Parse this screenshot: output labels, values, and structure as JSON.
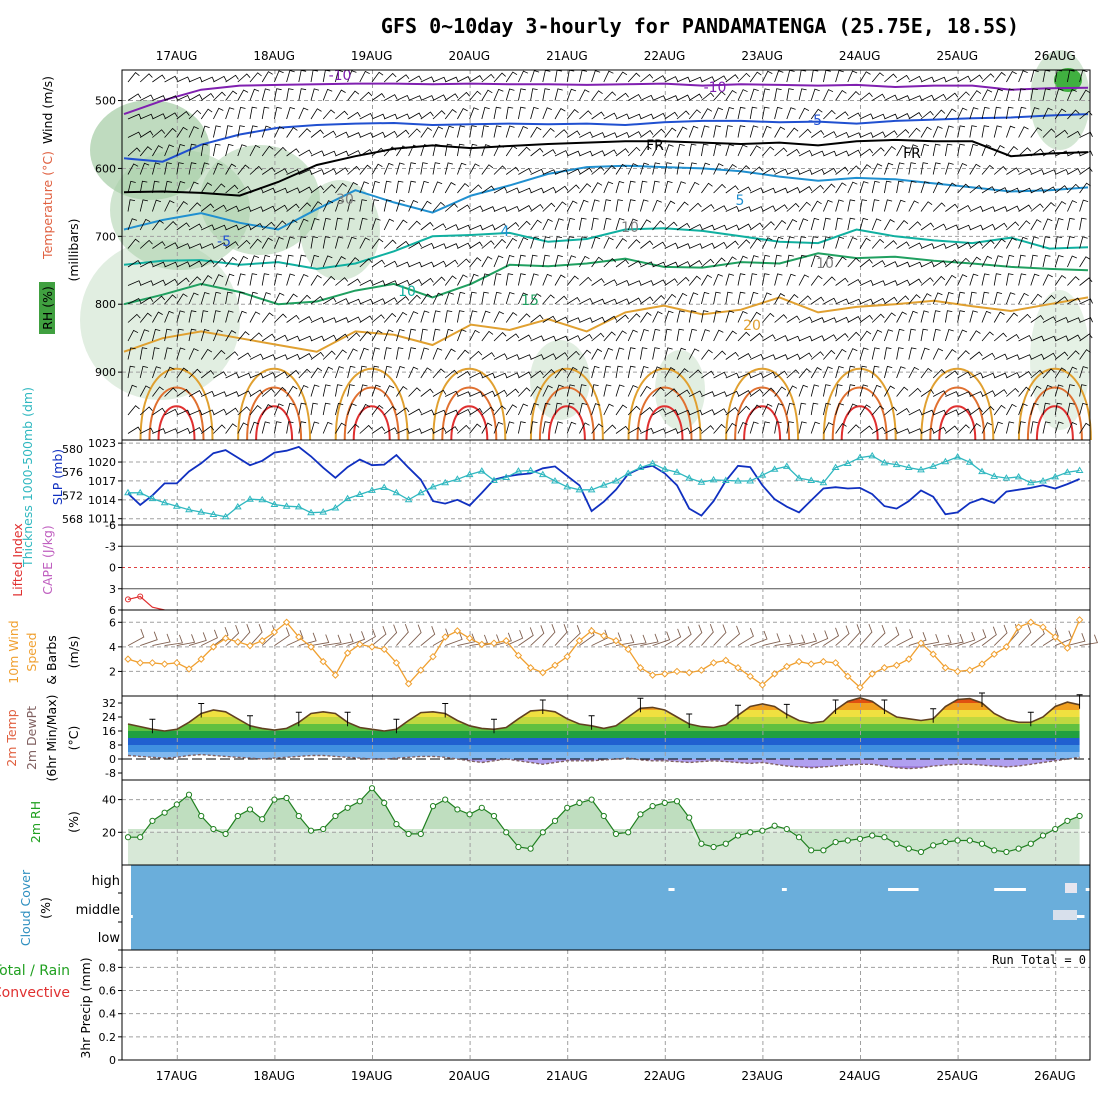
{
  "title": "GFS 0~10day 3-hourly for PANDAMATENGA (25.75E, 18.5S)",
  "dates": [
    "17AUG",
    "18AUG",
    "19AUG",
    "20AUG",
    "21AUG",
    "22AUG",
    "23AUG",
    "24AUG",
    "25AUG",
    "26AUG"
  ],
  "colors": {
    "grid": "#a0a0a0",
    "sky": "#6aaedb",
    "cloud": "#ffffff",
    "slp": "#1030c0",
    "thick": "#30b8c0",
    "wind": "#f0a030",
    "barb": "#806050",
    "rh": "#208020",
    "rh_fill": "#a9cfa9",
    "dew": "#806060"
  },
  "chart_data": [
    {
      "type": "contour",
      "name": "upper-air",
      "y_label_parts": [
        "Wind (m/s)",
        "Temperature (°C)",
        "(millibars)",
        "RH (%)"
      ],
      "yticks": [
        500,
        600,
        700,
        800,
        900
      ],
      "ylim": [
        1000,
        455
      ],
      "isotherm_labels": [
        "-10",
        "-10",
        "-5",
        "FR",
        "FR",
        "5",
        "-5",
        "4",
        "10",
        "15",
        "20",
        "30",
        "10",
        "10"
      ],
      "contours": [
        {
          "level": "-10",
          "color": "#8020b0",
          "p": [
            520,
            500,
            484,
            478,
            477,
            476,
            475,
            475,
            476,
            475,
            476,
            476,
            477,
            476,
            475,
            478,
            476,
            477,
            478,
            477,
            480,
            478,
            478,
            484,
            482,
            481
          ]
        },
        {
          "level": "-5",
          "color": "#2050d0",
          "p": [
            585,
            590,
            565,
            550,
            540,
            536,
            534,
            533,
            536,
            535,
            534,
            535,
            534,
            536,
            532,
            530,
            530,
            532,
            531,
            534,
            530,
            528,
            526,
            525,
            522,
            520
          ]
        },
        {
          "level": "FR",
          "color": "#000000",
          "p": [
            635,
            634,
            636,
            640,
            620,
            595,
            582,
            571,
            566,
            570,
            567,
            564,
            562,
            560,
            560,
            562,
            564,
            562,
            566,
            560,
            558,
            560,
            560,
            582,
            578,
            576
          ]
        },
        {
          "level": "5",
          "color": "#2090d0",
          "p": [
            690,
            676,
            666,
            680,
            690,
            660,
            632,
            650,
            665,
            640,
            625,
            608,
            598,
            596,
            598,
            600,
            604,
            612,
            618,
            614,
            616,
            622,
            628,
            634,
            632,
            628
          ]
        },
        {
          "level": "10",
          "color": "#10b0a0",
          "p": [
            742,
            736,
            735,
            742,
            738,
            748,
            740,
            722,
            700,
            698,
            695,
            708,
            704,
            690,
            688,
            692,
            700,
            708,
            710,
            690,
            700,
            706,
            710,
            702,
            718,
            716
          ]
        },
        {
          "level": "15",
          "color": "#20a060",
          "p": [
            800,
            786,
            770,
            782,
            800,
            796,
            780,
            770,
            790,
            770,
            742,
            744,
            740,
            733,
            745,
            746,
            738,
            740,
            725,
            732,
            730,
            736,
            740,
            745,
            748,
            750
          ]
        },
        {
          "level": "20",
          "color": "#e0a030",
          "p": [
            870,
            850,
            840,
            850,
            860,
            870,
            840,
            845,
            860,
            830,
            838,
            822,
            840,
            812,
            802,
            815,
            808,
            790,
            812,
            804,
            800,
            795,
            803,
            810,
            800,
            790
          ]
        }
      ]
    },
    {
      "type": "line",
      "name": "slp-thickness",
      "y_label_parts": [
        "SLP (mb)",
        "Thickness 1000-500mb (dm)"
      ],
      "yticks_right_dm": [
        568,
        572,
        576,
        580
      ],
      "yticks_left_mb": [
        1011,
        1014,
        1017,
        1020,
        1023
      ],
      "ylim_mb": [
        1010,
        1023.5
      ],
      "ylim_dm": [
        567,
        581.5
      ],
      "series": [
        {
          "name": "SLP (mb)",
          "color": "#1030c0",
          "values": [
            1015,
            1013.2,
            1014.7,
            1016.6,
            1016.6,
            1018.5,
            1019.8,
            1021.4,
            1021.9,
            1020.7,
            1019.5,
            1020.2,
            1021.5,
            1021.8,
            1022.4,
            1020.9,
            1019.1,
            1017.5,
            1019.2,
            1020.4,
            1019.5,
            1019.6,
            1021.1,
            1019.1,
            1017.2,
            1013.8,
            1013.4,
            1014.0,
            1013.1,
            1015.1,
            1017.2,
            1017.7,
            1018.0,
            1018.2,
            1019.0,
            1019.3,
            1017.8,
            1016.3,
            1012.2,
            1013.7,
            1015.6,
            1018.1,
            1019.0,
            1019.4,
            1018.2,
            1016.3,
            1012.6,
            1011.5,
            1013.8,
            1017.0,
            1019.4,
            1019.2,
            1016.3,
            1014.1,
            1012.9,
            1012.0,
            1013.9,
            1015.8,
            1016.0,
            1015.8,
            1015.9,
            1014.9,
            1013.0,
            1012.6,
            1013.8,
            1015.5,
            1014.5,
            1011.7,
            1012.0,
            1013.5,
            1014.2,
            1013.5,
            1015.3,
            1015.6,
            1015.9,
            1016.3,
            1015.8,
            1016.5,
            1017.3
          ]
        },
        {
          "name": "Thickness 1000-500mb (dm)",
          "color": "#30b8c0",
          "values": [
            572.5,
            572.5,
            571.5,
            570.8,
            570.2,
            569.6,
            569.2,
            568.8,
            568.4,
            570.1,
            571.4,
            571.3,
            570.5,
            570.2,
            570.1,
            569.1,
            569.2,
            569.9,
            571.5,
            572.2,
            572.9,
            573.4,
            572.5,
            571.3,
            572.5,
            573.5,
            574.2,
            574.8,
            575.6,
            576.2,
            574.6,
            575.1,
            576.2,
            576.3,
            575.6,
            574.5,
            573.5,
            573.0,
            573.0,
            573.8,
            574.5,
            575.8,
            576.8,
            577.5,
            576.5,
            576.0,
            575.0,
            574.3,
            574.7,
            574.6,
            574.5,
            574.5,
            575.5,
            576.5,
            577.0,
            575.0,
            574.6,
            574.2,
            576.8,
            577.5,
            578.5,
            578.8,
            577.6,
            577.3,
            576.8,
            576.4,
            577.0,
            577.8,
            578.6,
            577.7,
            576.1,
            575.3,
            575.0,
            575.2,
            574.2,
            574.5,
            575.2,
            576.0,
            576.3
          ]
        }
      ]
    },
    {
      "type": "line",
      "name": "cape-lifted-index",
      "y_label_parts": [
        "Lifted Index",
        "CAPE (J/kg)"
      ],
      "yticks": [
        -6,
        -3,
        0,
        3,
        6
      ],
      "ylim": [
        -6,
        6
      ],
      "series": [
        {
          "name": "Lifted Index",
          "color": "#e03030",
          "values": [
            4.5,
            4.1,
            5.6,
            6.0
          ]
        }
      ]
    },
    {
      "type": "line",
      "name": "10m-wind",
      "y_label_parts": [
        "10m Wind",
        "Speed",
        "& Barbs",
        "(m/s)"
      ],
      "yticks": [
        2,
        4,
        6
      ],
      "ylim": [
        0,
        7
      ],
      "series": [
        {
          "name": "Speed",
          "color": "#f0a030",
          "values": [
            3.0,
            2.7,
            2.7,
            2.6,
            2.7,
            2.2,
            3.0,
            4.0,
            4.7,
            4.4,
            4.1,
            4.5,
            5.2,
            6.0,
            4.8,
            4.0,
            2.8,
            1.7,
            3.5,
            4.2,
            4.0,
            3.8,
            2.7,
            1.0,
            2.1,
            3.2,
            4.8,
            5.3,
            4.7,
            4.2,
            4.3,
            4.5,
            3.3,
            2.3,
            1.9,
            2.5,
            3.2,
            4.5,
            5.3,
            4.9,
            4.5,
            3.8,
            2.3,
            1.7,
            1.8,
            2.0,
            1.9,
            2.1,
            2.7,
            2.9,
            2.3,
            1.6,
            0.9,
            1.8,
            2.4,
            2.8,
            2.6,
            2.8,
            2.7,
            1.6,
            0.7,
            1.8,
            2.3,
            2.5,
            3.0,
            4.3,
            3.4,
            2.3,
            2.0,
            2.1,
            2.6,
            3.4,
            4.0,
            5.6,
            6.0,
            5.6,
            4.8,
            3.9,
            6.2
          ]
        }
      ]
    },
    {
      "type": "area",
      "name": "2m-temperature",
      "y_label_parts": [
        "2m Temp",
        "2m DewPt",
        "(6hr Min/Max)",
        "(°C)"
      ],
      "yticks": [
        -8,
        0,
        8,
        16,
        24,
        32
      ],
      "ylim": [
        -12,
        36
      ],
      "series": [
        {
          "name": "2m Temp",
          "color": "#604020",
          "values": [
            20,
            18.5,
            17,
            16,
            17,
            21,
            26,
            28,
            27,
            23,
            19,
            17.5,
            16.5,
            17.5,
            21,
            26,
            27,
            26,
            21,
            18,
            17,
            16,
            17,
            22,
            26.5,
            27,
            26,
            22,
            19,
            17.5,
            17,
            18,
            23,
            27.5,
            28,
            27,
            23,
            20,
            19,
            17.5,
            19,
            24,
            29,
            29.5,
            28,
            24,
            20,
            18.5,
            18,
            19.5,
            25,
            30,
            31.5,
            30,
            25.5,
            22,
            20.5,
            21.5,
            28,
            33,
            35,
            33,
            28,
            24,
            23,
            22,
            23,
            30,
            34,
            34.5,
            32,
            26,
            22.5,
            21,
            21,
            24,
            30,
            32.5,
            31
          ]
        },
        {
          "name": "2m DewPt",
          "color": "#806060",
          "values": [
            2,
            1.5,
            1,
            0.5,
            1,
            2,
            2.5,
            2,
            1.5,
            1,
            0.5,
            0,
            0.5,
            1,
            1.5,
            2,
            2,
            1.5,
            1,
            0.5,
            0,
            0,
            0.5,
            1,
            1.5,
            1.5,
            1,
            0,
            -1,
            -2,
            -1,
            0,
            -1,
            -2,
            -3,
            -2,
            -1,
            -1,
            -1,
            -0.5,
            0,
            0.5,
            -0.5,
            -1,
            -1,
            -1.5,
            -2,
            -1.5,
            -1,
            -1.5,
            -2,
            -2.5,
            -2,
            -3,
            -4,
            -4.5,
            -5,
            -4.5,
            -4,
            -3.5,
            -3,
            -3,
            -4,
            -5,
            -5.5,
            -5,
            -4,
            -3.5,
            -3,
            -3,
            -3.5,
            -4,
            -4.5,
            -4,
            -3,
            -2,
            -1,
            0,
            1
          ]
        }
      ]
    },
    {
      "type": "area",
      "name": "2m-rh",
      "y_label_parts": [
        "2m RH",
        "(%)"
      ],
      "yticks": [
        20,
        40
      ],
      "ylim": [
        0,
        52
      ],
      "series": [
        {
          "name": "2m RH",
          "color": "#208020",
          "values": [
            17,
            17,
            27,
            32,
            37,
            43,
            30,
            22,
            19,
            30,
            34,
            28,
            40,
            41,
            30,
            21,
            22,
            30,
            35,
            39,
            47,
            38,
            25,
            19,
            19,
            36,
            40,
            34,
            31,
            35,
            30,
            20,
            11,
            10,
            20,
            27,
            35,
            38,
            40,
            30,
            19,
            20,
            31,
            36,
            38,
            39,
            29,
            13,
            11,
            13,
            18,
            20,
            21,
            24,
            22,
            17,
            9,
            9,
            14,
            15,
            16,
            18,
            17,
            13,
            10,
            8,
            12,
            14,
            15,
            15,
            13,
            9,
            8,
            10,
            13,
            18,
            22,
            27,
            30
          ]
        }
      ]
    },
    {
      "type": "heatmap",
      "name": "cloud-cover",
      "y_label_parts": [
        "Cloud Cover",
        "(%)"
      ],
      "ylabels": [
        "high",
        "middle",
        "low"
      ],
      "cells": [
        {
          "level": "middle-low",
          "start": 0.15,
          "end": 0.25
        },
        {
          "level": "high",
          "start": 44.3,
          "end": 44.8
        },
        {
          "level": "high",
          "start": 53.6,
          "end": 54.0
        },
        {
          "level": "high",
          "start": 62.3,
          "end": 64.8
        },
        {
          "level": "high",
          "start": 71.0,
          "end": 73.6
        },
        {
          "level": "high",
          "start": 78.5,
          "end": 79.5
        },
        {
          "level": "middle-low",
          "start": 76.7,
          "end": 78.4
        }
      ]
    },
    {
      "type": "bar",
      "name": "3hr-precip",
      "y_label_parts": [
        "Total / Rain",
        "Convective",
        "3hr Precip (mm)"
      ],
      "yticks": [
        0,
        0.2,
        0.4,
        0.6,
        0.8
      ],
      "ylim": [
        0,
        0.95
      ],
      "run_total": "Run Total = 0",
      "values": []
    }
  ]
}
